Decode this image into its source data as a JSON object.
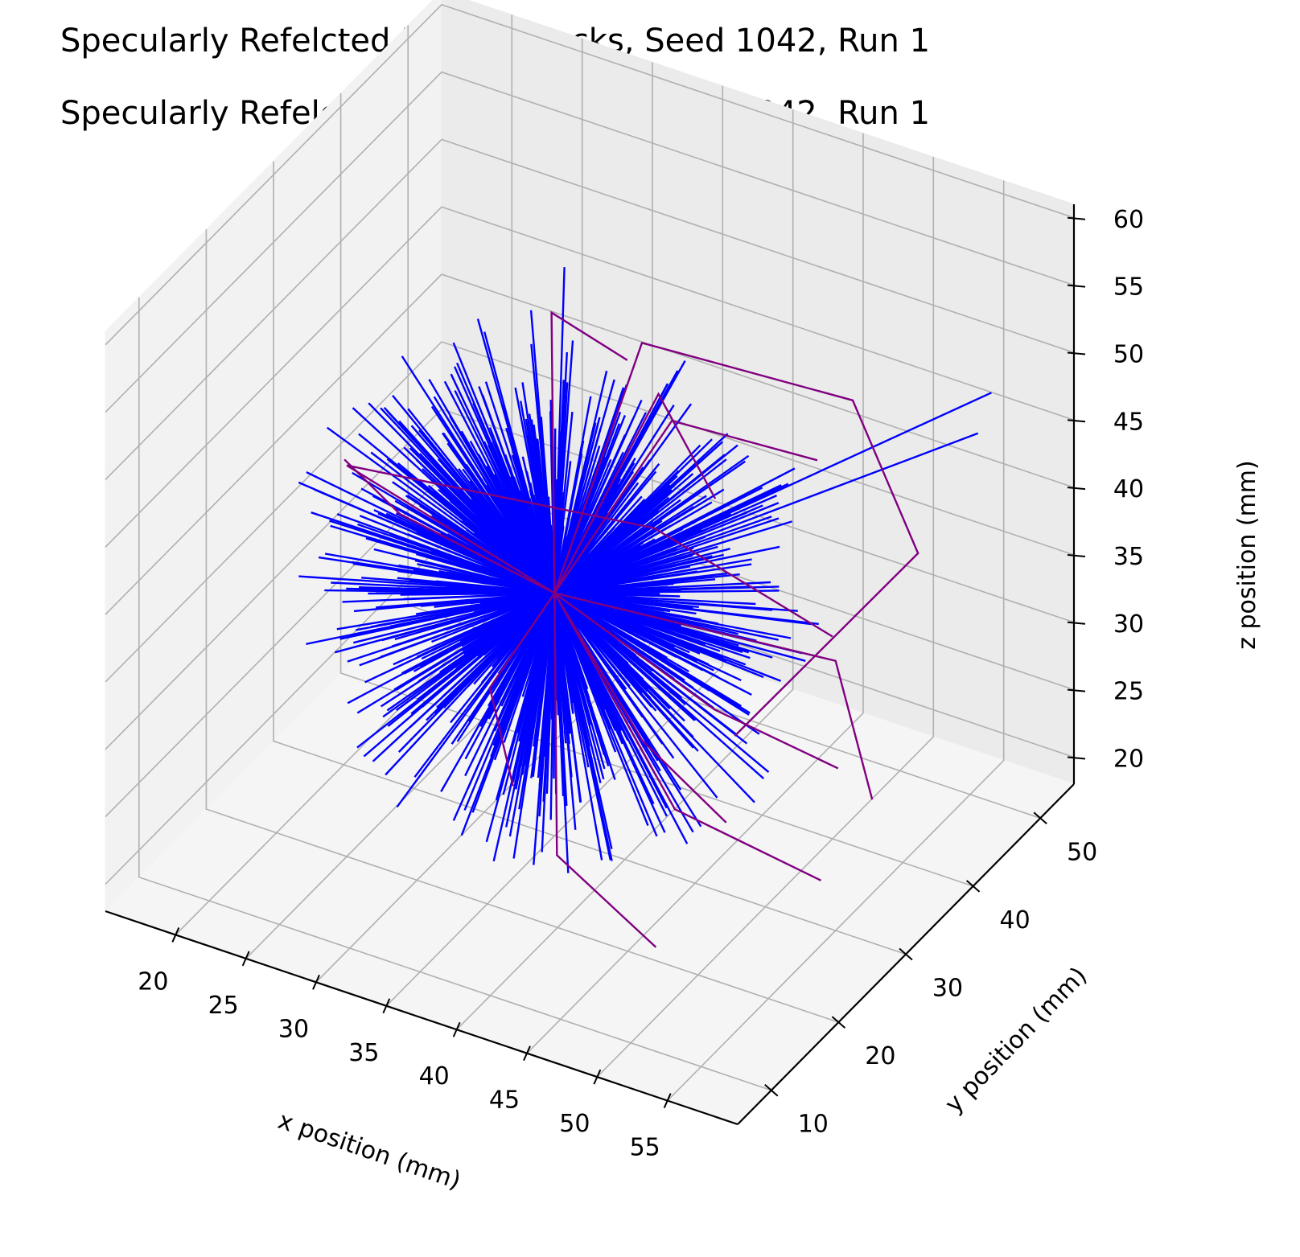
{
  "chart_data": {
    "type": "line",
    "projection": "3d",
    "titles": [
      "Specularly Refelcted Photon Tracks, Seed 1042, Run 1",
      "Specularly Refelcted Photon Tracks, Seed 1042, Run 1"
    ],
    "xlabel": "x position (mm)",
    "ylabel": "y position (mm)",
    "zlabel": "z position (mm)",
    "xticks": [
      20,
      25,
      30,
      35,
      40,
      45,
      50,
      55
    ],
    "yticks": [
      10,
      20,
      30,
      40,
      50
    ],
    "zticks": [
      20,
      25,
      30,
      35,
      40,
      45,
      50,
      55,
      60
    ],
    "xlim": [
      15,
      60
    ],
    "ylim": [
      5,
      55
    ],
    "zlim": [
      18,
      61
    ],
    "grid": true,
    "source_point": [
      35,
      30,
      36
    ],
    "series": [
      {
        "color": "#0000ff",
        "description_tracks": "dense radial spray of short straight tracks from the source (about 900 rays, length about 6-18 mm)",
        "long_tracks": [
          [
            [
              35,
              30,
              36
            ],
            [
              57,
              49,
              49
            ]
          ],
          [
            [
              35,
              30,
              36
            ],
            [
              57,
              47,
              47
            ]
          ],
          [
            [
              35,
              30,
              36
            ],
            [
              29,
              44,
              51
            ]
          ]
        ]
      },
      {
        "color": "#800080",
        "polylines": [
          [
            [
              35,
              30,
              36
            ],
            [
              35,
              43,
              48
            ],
            [
              50,
              43,
              49
            ],
            [
              58,
              36,
              44
            ],
            [
              55,
              15,
              40
            ]
          ],
          [
            [
              35,
              30,
              36
            ],
            [
              25,
              20,
              47
            ],
            [
              44,
              26,
              46
            ],
            [
              50,
              40,
              33
            ]
          ],
          [
            [
              35,
              30,
              36
            ],
            [
              40,
              37,
              47
            ],
            [
              47,
              44,
              43
            ]
          ],
          [
            [
              35,
              30,
              36
            ],
            [
              30,
              40,
              50
            ],
            [
              33,
              45,
              45
            ]
          ],
          [
            [
              35,
              30,
              36
            ],
            [
              44,
              35,
              28
            ],
            [
              48,
              45,
              20
            ]
          ],
          [
            [
              35,
              30,
              36
            ],
            [
              45,
              27,
              25
            ],
            [
              53,
              32,
              20
            ]
          ],
          [
            [
              35,
              30,
              36
            ],
            [
              24,
              30,
              38
            ],
            [
              21,
              28,
              42
            ]
          ],
          [
            [
              35,
              30,
              36
            ],
            [
              28,
              35,
              24
            ],
            [
              33,
              28,
              22
            ]
          ],
          [
            [
              35,
              30,
              36
            ],
            [
              46,
              20,
              34
            ],
            [
              52,
              20,
              30
            ]
          ],
          [
            [
              35,
              30,
              36
            ],
            [
              40,
              35,
              50
            ],
            [
              45,
              33,
              45
            ]
          ],
          [
            [
              35,
              30,
              36
            ],
            [
              55,
              30,
              38
            ],
            [
              60,
              25,
              32
            ]
          ],
          [
            [
              35,
              30,
              36
            ],
            [
              39,
              22,
              22
            ],
            [
              47,
              20,
              19
            ]
          ]
        ]
      }
    ]
  }
}
